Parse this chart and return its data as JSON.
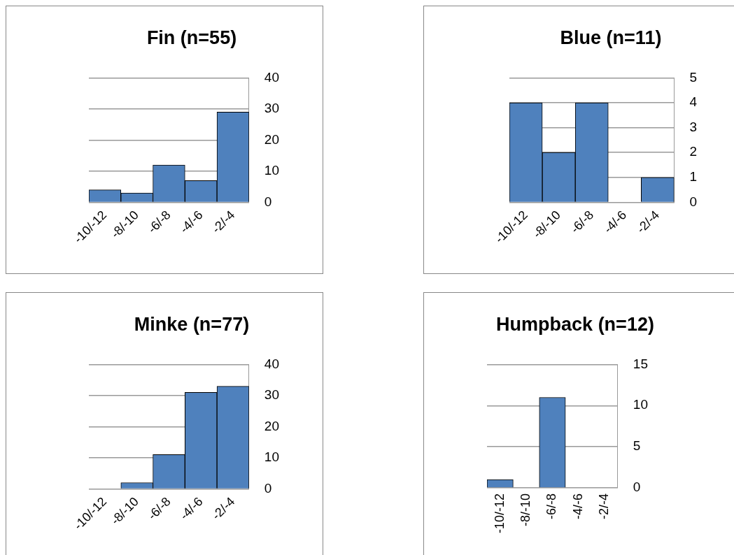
{
  "chart_data": [
    {
      "type": "bar",
      "title": "Fin (n=55)",
      "categories": [
        "-10/-12",
        "-8/-10",
        "-6/-8",
        "-4/-6",
        "-2/-4"
      ],
      "values": [
        4,
        3,
        12,
        7,
        29
      ],
      "color": "#4f81bd",
      "ylim": [
        0,
        40
      ],
      "yticks": [
        0,
        10,
        20,
        30,
        40
      ],
      "grid": "y"
    },
    {
      "type": "bar",
      "title": "Blue (n=11)",
      "categories": [
        "-10/-12",
        "-8/-10",
        "-6/-8",
        "-4/-6",
        "-2/-4"
      ],
      "values": [
        4,
        2,
        4,
        0,
        1
      ],
      "color": "#4f81bd",
      "ylim": [
        0,
        5
      ],
      "yticks": [
        0,
        1,
        2,
        3,
        4,
        5
      ],
      "grid": "y"
    },
    {
      "type": "bar",
      "title": "Minke (n=77)",
      "categories": [
        "-10/-12",
        "-8/-10",
        "-6/-8",
        "-4/-6",
        "-2/-4"
      ],
      "values": [
        0,
        2,
        11,
        31,
        33
      ],
      "color": "#4f81bd",
      "ylim": [
        0,
        40
      ],
      "yticks": [
        0,
        10,
        20,
        30,
        40
      ],
      "grid": "y"
    },
    {
      "type": "bar",
      "title": "Humpback (n=12)",
      "categories": [
        "-10/-12",
        "-8/-10",
        "-6/-8",
        "-4/-6",
        "-2/-4"
      ],
      "values": [
        1,
        0,
        11,
        0,
        0
      ],
      "color": "#4f81bd",
      "ylim": [
        0,
        15
      ],
      "yticks": [
        0,
        5,
        10,
        15
      ],
      "grid": "y"
    }
  ]
}
